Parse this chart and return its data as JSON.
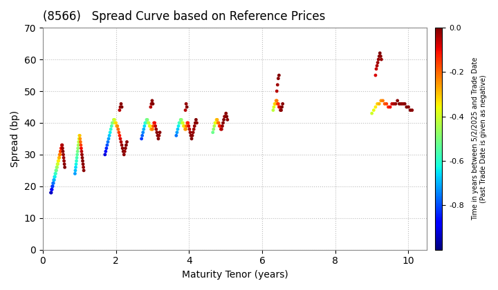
{
  "title": "(8566)   Spread Curve based on Reference Prices",
  "xlabel": "Maturity Tenor (years)",
  "ylabel": "Spread (bp)",
  "colorbar_label": "Time in years between 5/2/2025 and Trade Date\n(Past Trade Date is given as negative)",
  "xlim": [
    0,
    10.5
  ],
  "ylim": [
    0,
    70
  ],
  "xticks": [
    0,
    2,
    4,
    6,
    8,
    10
  ],
  "yticks": [
    0,
    10,
    20,
    30,
    40,
    50,
    60,
    70
  ],
  "cmap": "jet",
  "clim": [
    -1.0,
    0.0
  ],
  "cticks": [
    0.0,
    -0.2,
    -0.4,
    -0.6,
    -0.8
  ],
  "background_color": "#ffffff",
  "grid_color": "#bbbbbb",
  "point_size": 12,
  "clusters": [
    {
      "maturity_values": [
        0.22,
        0.23,
        0.24,
        0.25,
        0.26,
        0.27,
        0.28,
        0.29,
        0.3,
        0.31,
        0.32,
        0.33,
        0.34,
        0.35,
        0.36,
        0.37,
        0.38,
        0.39,
        0.4,
        0.41,
        0.42,
        0.43,
        0.44,
        0.45,
        0.46,
        0.47,
        0.48,
        0.49,
        0.5,
        0.51,
        0.52,
        0.53,
        0.54,
        0.55,
        0.56,
        0.57,
        0.58,
        0.59,
        0.6
      ],
      "spread_values": [
        18,
        18,
        19,
        19,
        20,
        20,
        21,
        21,
        22,
        22,
        23,
        23,
        24,
        24,
        25,
        25,
        26,
        26,
        27,
        27,
        28,
        28,
        29,
        29,
        30,
        30,
        31,
        31,
        32,
        32,
        33,
        33,
        32,
        31,
        30,
        29,
        28,
        27,
        26
      ],
      "color_values": [
        -0.97,
        -0.94,
        -0.91,
        -0.88,
        -0.85,
        -0.82,
        -0.79,
        -0.76,
        -0.73,
        -0.7,
        -0.67,
        -0.64,
        -0.61,
        -0.58,
        -0.55,
        -0.52,
        -0.49,
        -0.46,
        -0.43,
        -0.4,
        -0.37,
        -0.34,
        -0.31,
        -0.28,
        -0.25,
        -0.22,
        -0.19,
        -0.16,
        -0.13,
        -0.1,
        -0.07,
        -0.04,
        -0.02,
        -0.01,
        -0.02,
        -0.03,
        -0.02,
        -0.01,
        0.0
      ]
    },
    {
      "maturity_values": [
        0.88,
        0.89,
        0.9,
        0.91,
        0.92,
        0.93,
        0.94,
        0.95,
        0.96,
        0.97,
        0.98,
        0.99,
        1.0,
        1.01,
        1.02,
        1.03,
        1.04,
        1.05,
        1.06,
        1.07,
        1.08,
        1.09,
        1.1,
        1.11,
        1.12
      ],
      "spread_values": [
        24,
        25,
        26,
        27,
        28,
        29,
        30,
        31,
        32,
        33,
        34,
        35,
        36,
        36,
        35,
        34,
        33,
        32,
        31,
        30,
        29,
        28,
        27,
        26,
        25
      ],
      "color_values": [
        -0.72,
        -0.69,
        -0.66,
        -0.63,
        -0.6,
        -0.57,
        -0.54,
        -0.51,
        -0.48,
        -0.45,
        -0.42,
        -0.39,
        -0.36,
        -0.3,
        -0.25,
        -0.2,
        -0.15,
        -0.1,
        -0.05,
        -0.02,
        -0.01,
        0.0,
        -0.01,
        -0.02,
        -0.01
      ]
    },
    {
      "maturity_values": [
        1.7,
        1.72,
        1.74,
        1.76,
        1.78,
        1.8,
        1.82,
        1.84,
        1.86,
        1.88,
        1.9,
        1.92,
        1.94,
        1.96,
        1.98,
        2.0,
        2.02,
        2.04,
        2.06,
        2.08,
        2.1,
        2.12,
        2.14,
        2.16,
        2.18,
        2.2,
        2.22,
        2.24,
        2.26,
        2.28,
        2.3,
        2.1,
        2.12,
        2.14,
        2.16
      ],
      "spread_values": [
        30,
        31,
        32,
        33,
        34,
        35,
        36,
        37,
        38,
        39,
        40,
        40,
        41,
        41,
        40,
        40,
        39,
        39,
        38,
        37,
        36,
        35,
        34,
        33,
        32,
        31,
        30,
        31,
        32,
        33,
        34,
        44,
        45,
        46,
        45
      ],
      "color_values": [
        -0.92,
        -0.88,
        -0.84,
        -0.8,
        -0.76,
        -0.72,
        -0.68,
        -0.64,
        -0.6,
        -0.56,
        -0.52,
        -0.48,
        -0.44,
        -0.4,
        -0.36,
        -0.32,
        -0.28,
        -0.24,
        -0.2,
        -0.16,
        -0.12,
        -0.08,
        -0.04,
        -0.02,
        -0.01,
        0.0,
        -0.01,
        -0.02,
        -0.01,
        0.0,
        -0.01,
        -0.05,
        -0.02,
        -0.01,
        0.0
      ]
    },
    {
      "maturity_values": [
        2.7,
        2.72,
        2.74,
        2.76,
        2.78,
        2.8,
        2.82,
        2.84,
        2.86,
        2.88,
        2.9,
        2.92,
        2.94,
        2.96,
        2.98,
        3.0,
        3.02,
        3.04,
        3.06,
        3.08,
        3.1,
        3.12,
        3.14,
        3.16,
        3.18,
        3.2,
        2.95,
        2.97,
        2.99,
        3.01
      ],
      "spread_values": [
        35,
        36,
        37,
        38,
        39,
        40,
        40,
        41,
        41,
        40,
        40,
        39,
        39,
        38,
        38,
        38,
        39,
        40,
        40,
        39,
        38,
        37,
        36,
        35,
        36,
        37,
        45,
        46,
        47,
        46
      ],
      "color_values": [
        -0.82,
        -0.78,
        -0.74,
        -0.7,
        -0.66,
        -0.62,
        -0.58,
        -0.54,
        -0.5,
        -0.46,
        -0.42,
        -0.38,
        -0.34,
        -0.3,
        -0.26,
        -0.22,
        -0.18,
        -0.14,
        -0.1,
        -0.06,
        -0.02,
        -0.01,
        0.0,
        -0.01,
        -0.02,
        -0.01,
        -0.05,
        -0.02,
        -0.01,
        0.0
      ]
    },
    {
      "maturity_values": [
        3.65,
        3.67,
        3.69,
        3.71,
        3.73,
        3.75,
        3.77,
        3.79,
        3.81,
        3.83,
        3.85,
        3.87,
        3.89,
        3.91,
        3.93,
        3.95,
        3.97,
        3.99,
        4.01,
        4.03,
        4.05,
        4.07,
        4.09,
        4.11,
        4.13,
        4.15,
        4.17,
        4.19,
        4.21,
        3.9,
        3.92,
        3.94
      ],
      "spread_values": [
        36,
        37,
        38,
        39,
        40,
        40,
        41,
        41,
        40,
        40,
        39,
        39,
        38,
        38,
        39,
        40,
        40,
        39,
        38,
        37,
        36,
        35,
        36,
        37,
        38,
        39,
        40,
        41,
        40,
        44,
        46,
        45
      ],
      "color_values": [
        -0.76,
        -0.72,
        -0.68,
        -0.64,
        -0.6,
        -0.56,
        -0.52,
        -0.48,
        -0.44,
        -0.4,
        -0.36,
        -0.32,
        -0.28,
        -0.24,
        -0.2,
        -0.16,
        -0.12,
        -0.08,
        -0.04,
        -0.02,
        -0.01,
        0.0,
        -0.01,
        -0.02,
        -0.03,
        -0.02,
        -0.01,
        0.0,
        -0.01,
        -0.05,
        -0.02,
        0.0
      ]
    },
    {
      "maturity_values": [
        4.65,
        4.67,
        4.69,
        4.71,
        4.73,
        4.75,
        4.77,
        4.79,
        4.81,
        4.83,
        4.85,
        4.87,
        4.89,
        4.91,
        4.93,
        4.95,
        4.97,
        4.99,
        5.01,
        5.03,
        5.05
      ],
      "spread_values": [
        37,
        38,
        39,
        40,
        40,
        41,
        41,
        40,
        40,
        39,
        39,
        38,
        38,
        39,
        40,
        41,
        42,
        42,
        43,
        42,
        41
      ],
      "color_values": [
        -0.52,
        -0.48,
        -0.44,
        -0.4,
        -0.36,
        -0.32,
        -0.28,
        -0.24,
        -0.2,
        -0.16,
        -0.12,
        -0.08,
        -0.04,
        -0.02,
        -0.01,
        0.0,
        -0.01,
        -0.02,
        -0.01,
        0.0,
        -0.01
      ]
    },
    {
      "maturity_values": [
        6.3,
        6.32,
        6.34,
        6.36,
        6.38,
        6.4,
        6.42,
        6.44,
        6.46,
        6.48,
        6.5,
        6.52,
        6.54,
        6.56,
        6.4,
        6.42,
        6.44,
        6.46
      ],
      "spread_values": [
        44,
        45,
        46,
        46,
        47,
        47,
        46,
        46,
        45,
        45,
        44,
        44,
        45,
        46,
        50,
        52,
        54,
        55
      ],
      "color_values": [
        -0.42,
        -0.38,
        -0.34,
        -0.3,
        -0.26,
        -0.22,
        -0.18,
        -0.14,
        -0.1,
        -0.06,
        -0.02,
        -0.01,
        0.0,
        -0.01,
        -0.05,
        -0.03,
        -0.01,
        0.0
      ]
    },
    {
      "maturity_values": [
        9.0,
        9.05,
        9.1,
        9.15,
        9.2,
        9.25,
        9.3,
        9.35,
        9.4,
        9.45,
        9.5,
        9.55,
        9.6,
        9.65,
        9.7,
        9.75,
        9.8,
        9.85,
        9.9,
        9.95,
        10.0,
        10.05,
        10.1,
        9.1,
        9.12,
        9.14,
        9.16,
        9.18,
        9.2,
        9.22,
        9.24,
        9.26
      ],
      "spread_values": [
        43,
        44,
        45,
        46,
        46,
        47,
        47,
        46,
        46,
        45,
        45,
        46,
        46,
        46,
        47,
        46,
        46,
        46,
        46,
        45,
        45,
        44,
        44,
        55,
        57,
        58,
        59,
        60,
        61,
        62,
        61,
        60
      ],
      "color_values": [
        -0.4,
        -0.37,
        -0.34,
        -0.31,
        -0.28,
        -0.25,
        -0.22,
        -0.19,
        -0.16,
        -0.13,
        -0.1,
        -0.07,
        -0.04,
        -0.02,
        -0.01,
        0.0,
        -0.01,
        -0.02,
        -0.01,
        0.0,
        -0.01,
        0.0,
        -0.01,
        -0.08,
        -0.06,
        -0.04,
        -0.03,
        -0.02,
        -0.01,
        0.0,
        -0.01,
        -0.02
      ]
    }
  ]
}
